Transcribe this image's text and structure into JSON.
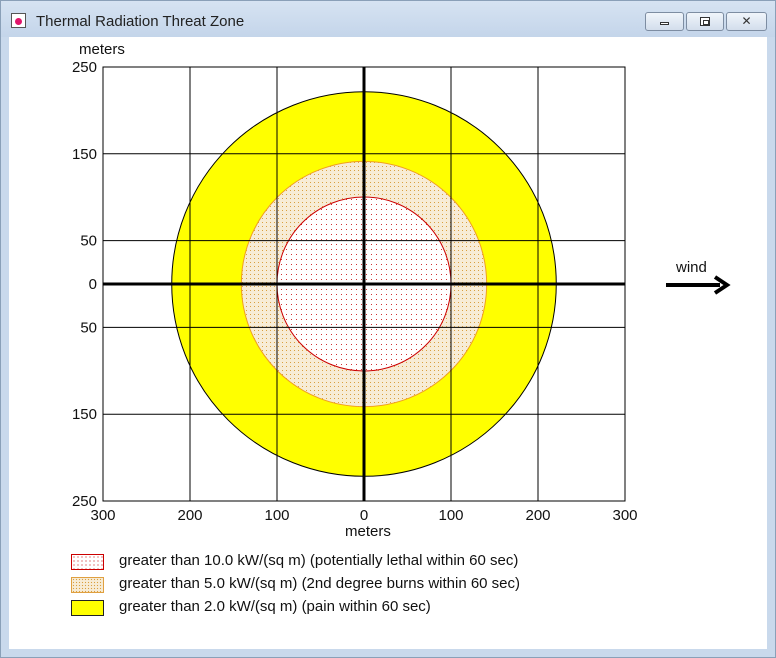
{
  "window": {
    "title": "Thermal Radiation Threat Zone",
    "buttons": {
      "minimize": "minimize-icon",
      "maximize": "maximize-icon",
      "close": "✕"
    }
  },
  "plot": {
    "y_unit_label": "meters",
    "x_unit_label": "meters",
    "y_tick_labels": [
      "250",
      "150",
      "50",
      "0",
      "50",
      "150",
      "250"
    ],
    "x_tick_labels": [
      "300",
      "200",
      "100",
      "0",
      "100",
      "200",
      "300"
    ],
    "wind_label": "wind"
  },
  "chart_data": {
    "type": "other",
    "x_range": [
      -300,
      300
    ],
    "y_range": [
      -250,
      250
    ],
    "grid_step_x": 100,
    "grid_step_y": 100,
    "zones": [
      {
        "threshold": "2.0 kW/(sq m)",
        "radius_m": 221,
        "fill": "#ffff00",
        "stroke": "#000000",
        "pattern": "solid"
      },
      {
        "threshold": "5.0 kW/(sq m)",
        "radius_m": 141,
        "fill": "#f5e9d2",
        "stroke": "#f0a020",
        "pattern": "dots-orange"
      },
      {
        "threshold": "10.0 kW/(sq m)",
        "radius_m": 100,
        "fill": "#ffffff",
        "stroke": "#cc0000",
        "pattern": "dots-red"
      }
    ]
  },
  "legend": [
    {
      "label": "greater than 10.0 kW/(sq m) (potentially lethal within 60 sec)",
      "color": "#cc0000",
      "style": "dots-red"
    },
    {
      "label": "greater than 5.0 kW/(sq m) (2nd degree burns within 60 sec)",
      "color": "#f0a020",
      "style": "dots-orange"
    },
    {
      "label": "greater than 2.0 kW/(sq m) (pain within 60 sec)",
      "color": "#ffff00",
      "style": "solid"
    }
  ]
}
